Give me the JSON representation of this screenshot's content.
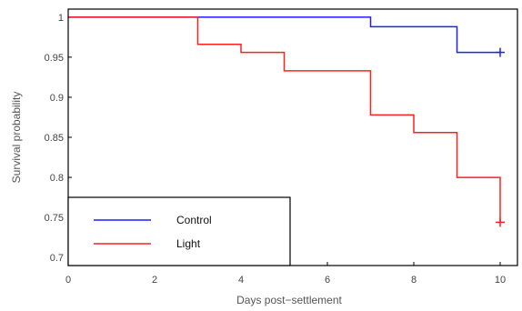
{
  "chart_data": {
    "type": "line",
    "subtype": "step (Kaplan-Meier survival)",
    "xlabel": "Days post−settlement",
    "ylabel": "Survival probability",
    "xlim": [
      0,
      10.4
    ],
    "ylim": [
      0.69,
      1.01
    ],
    "xticks": [
      0,
      2,
      4,
      6,
      8,
      10
    ],
    "xtick_labels": [
      "0",
      "2",
      "4",
      "6",
      "8",
      "10"
    ],
    "yticks": [
      0.7,
      0.75,
      0.8,
      0.85,
      0.9,
      0.95,
      1
    ],
    "ytick_labels": [
      "0.7",
      "0.75",
      "0.8",
      "0.85",
      "0.9",
      "0.95",
      "1"
    ],
    "grid": false,
    "legend_position": "bottom-left",
    "series": [
      {
        "name": "Control",
        "color": "#1f1fff",
        "x": [
          0,
          7,
          9,
          10
        ],
        "y": [
          1.0,
          0.988,
          0.956,
          0.956
        ],
        "censor_marks": [
          {
            "x": 10,
            "y": 0.956
          }
        ]
      },
      {
        "name": "Light",
        "color": "#ff2020",
        "x": [
          0,
          3,
          4,
          5,
          7,
          8,
          9,
          10
        ],
        "y": [
          1.0,
          0.966,
          0.956,
          0.933,
          0.878,
          0.856,
          0.8,
          0.744
        ],
        "censor_marks": [
          {
            "x": 10,
            "y": 0.744
          }
        ]
      }
    ]
  }
}
